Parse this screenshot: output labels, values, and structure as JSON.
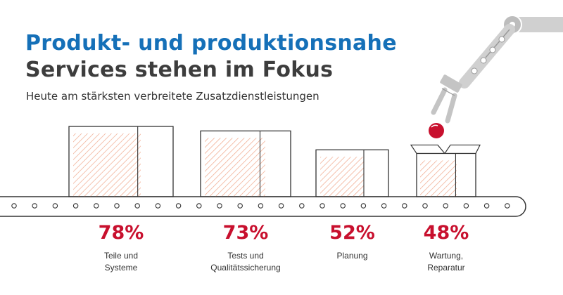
{
  "header": {
    "title_line1": "Produkt- und produktionsnahe",
    "title_line2": "Services stehen im Fokus",
    "subtitle": "Heute am stärksten verbreitete Zusatzdienstleistungen"
  },
  "colors": {
    "title_blue": "#1570b8",
    "title_dark": "#3d3d3d",
    "percent_red": "#c8102e",
    "hatch": "#f0a68a",
    "robot_gray": "#c9c9c9"
  },
  "chart_data": {
    "type": "bar",
    "categories": [
      "Teile und\nSysteme",
      "Tests und\nQualitätssicherung",
      "Planung",
      "Wartung,\nReparatur"
    ],
    "values": [
      78,
      73,
      52,
      48
    ],
    "value_labels": [
      "78%",
      "73%",
      "52%",
      "48%"
    ],
    "title": "Produkt- und produktionsnahe Services stehen im Fokus",
    "subtitle": "Heute am stärksten verbreitete Zusatzdienstleistungen",
    "unit": "%",
    "ylim": [
      0,
      100
    ],
    "grid": false,
    "legend": "none"
  }
}
